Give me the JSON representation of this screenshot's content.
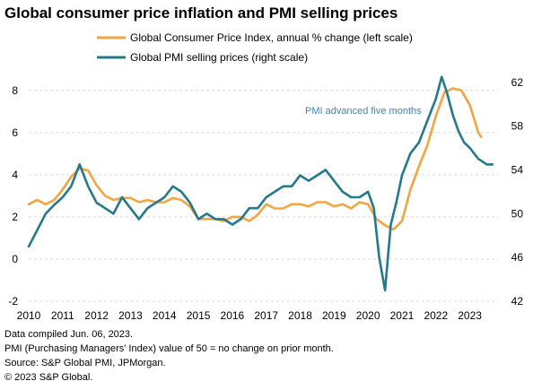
{
  "title": "Global consumer price inflation and PMI selling prices",
  "notes": [
    "Data compiled Jun. 06, 2023.",
    "PMI (Purchasing Managers' Index) value of 50 = no change on prior month.",
    "Source: S&P Global PMI, JPMorgan.",
    "© 2023 S&P Global."
  ],
  "colors": {
    "cpi": "#F2A541",
    "pmi": "#24798C",
    "grid": "#D9D9D9",
    "annotation": "#3A86B8",
    "axis_text": "#000000"
  },
  "chart_data": {
    "type": "line",
    "title": "Global consumer price inflation and PMI selling prices",
    "legend": {
      "placement": "top",
      "entries": [
        "Global Consumer Price Index, annual % change (left scale)",
        "Global PMI selling prices (right scale)"
      ]
    },
    "annotation": "PMI advanced five months",
    "grid": true,
    "x_ticks": [
      2010,
      2011,
      2012,
      2013,
      2014,
      2015,
      2016,
      2017,
      2018,
      2019,
      2020,
      2021,
      2022,
      2023
    ],
    "xlim": [
      2010,
      2023.83
    ],
    "y_left": {
      "ticks": [
        -2,
        0,
        2,
        4,
        6,
        8
      ],
      "ylim": [
        -2,
        8.8
      ]
    },
    "y_right": {
      "ticks": [
        42,
        46,
        50,
        54,
        58,
        62
      ],
      "ylim": [
        42,
        62.8
      ]
    },
    "series": [
      {
        "name": "Global Consumer Price Index, annual % change (left scale)",
        "axis": "left",
        "x": [
          2010.0,
          2010.25,
          2010.5,
          2010.75,
          2011.0,
          2011.25,
          2011.5,
          2011.75,
          2012.0,
          2012.25,
          2012.5,
          2012.75,
          2013.0,
          2013.25,
          2013.5,
          2013.75,
          2014.0,
          2014.25,
          2014.5,
          2014.75,
          2015.0,
          2015.25,
          2015.5,
          2015.75,
          2016.0,
          2016.25,
          2016.5,
          2016.75,
          2017.0,
          2017.25,
          2017.5,
          2017.75,
          2018.0,
          2018.25,
          2018.5,
          2018.75,
          2019.0,
          2019.25,
          2019.5,
          2019.75,
          2020.0,
          2020.25,
          2020.5,
          2020.75,
          2021.0,
          2021.25,
          2021.5,
          2021.75,
          2022.0,
          2022.25,
          2022.5,
          2022.75,
          2023.0,
          2023.25,
          2023.33
        ],
        "values": [
          2.6,
          2.8,
          2.6,
          2.8,
          3.3,
          3.9,
          4.3,
          4.2,
          3.5,
          3.0,
          2.8,
          2.9,
          2.9,
          2.7,
          2.8,
          2.7,
          2.7,
          2.9,
          2.8,
          2.5,
          1.9,
          1.9,
          1.9,
          1.8,
          2.0,
          2.0,
          1.8,
          2.1,
          2.6,
          2.4,
          2.4,
          2.6,
          2.6,
          2.5,
          2.7,
          2.7,
          2.5,
          2.6,
          2.4,
          2.7,
          2.6,
          1.9,
          1.6,
          1.4,
          1.8,
          3.3,
          4.4,
          5.4,
          6.8,
          7.9,
          8.1,
          8.0,
          7.3,
          6.0,
          5.8
        ]
      },
      {
        "name": "Global PMI selling prices (right scale)",
        "axis": "right",
        "x": [
          2010.0,
          2010.25,
          2010.5,
          2010.75,
          2011.0,
          2011.25,
          2011.5,
          2011.75,
          2012.0,
          2012.25,
          2012.5,
          2012.75,
          2013.0,
          2013.25,
          2013.5,
          2013.75,
          2014.0,
          2014.25,
          2014.5,
          2014.75,
          2015.0,
          2015.25,
          2015.5,
          2015.75,
          2016.0,
          2016.25,
          2016.5,
          2016.75,
          2017.0,
          2017.25,
          2017.5,
          2017.75,
          2018.0,
          2018.25,
          2018.5,
          2018.75,
          2019.0,
          2019.25,
          2019.5,
          2019.75,
          2020.0,
          2020.17,
          2020.33,
          2020.5,
          2020.67,
          2020.83,
          2021.0,
          2021.25,
          2021.5,
          2021.75,
          2022.0,
          2022.17,
          2022.33,
          2022.5,
          2022.67,
          2022.83,
          2023.0,
          2023.25,
          2023.5,
          2023.67
        ],
        "values": [
          47.0,
          48.5,
          50.0,
          50.8,
          51.5,
          52.5,
          54.5,
          52.5,
          51.0,
          50.5,
          50.0,
          51.5,
          50.5,
          49.5,
          50.5,
          51.0,
          51.5,
          52.5,
          52.0,
          51.0,
          49.5,
          50.0,
          49.5,
          49.5,
          49.0,
          49.5,
          50.5,
          50.5,
          51.5,
          52.0,
          52.5,
          52.5,
          53.5,
          53.0,
          53.5,
          54.0,
          53.0,
          52.0,
          51.5,
          51.5,
          52.0,
          50.5,
          46.0,
          43.0,
          49.0,
          51.0,
          53.5,
          55.5,
          56.5,
          58.5,
          60.5,
          62.5,
          61.0,
          59.0,
          57.5,
          56.5,
          56.0,
          55.0,
          54.5,
          54.5
        ]
      }
    ]
  }
}
